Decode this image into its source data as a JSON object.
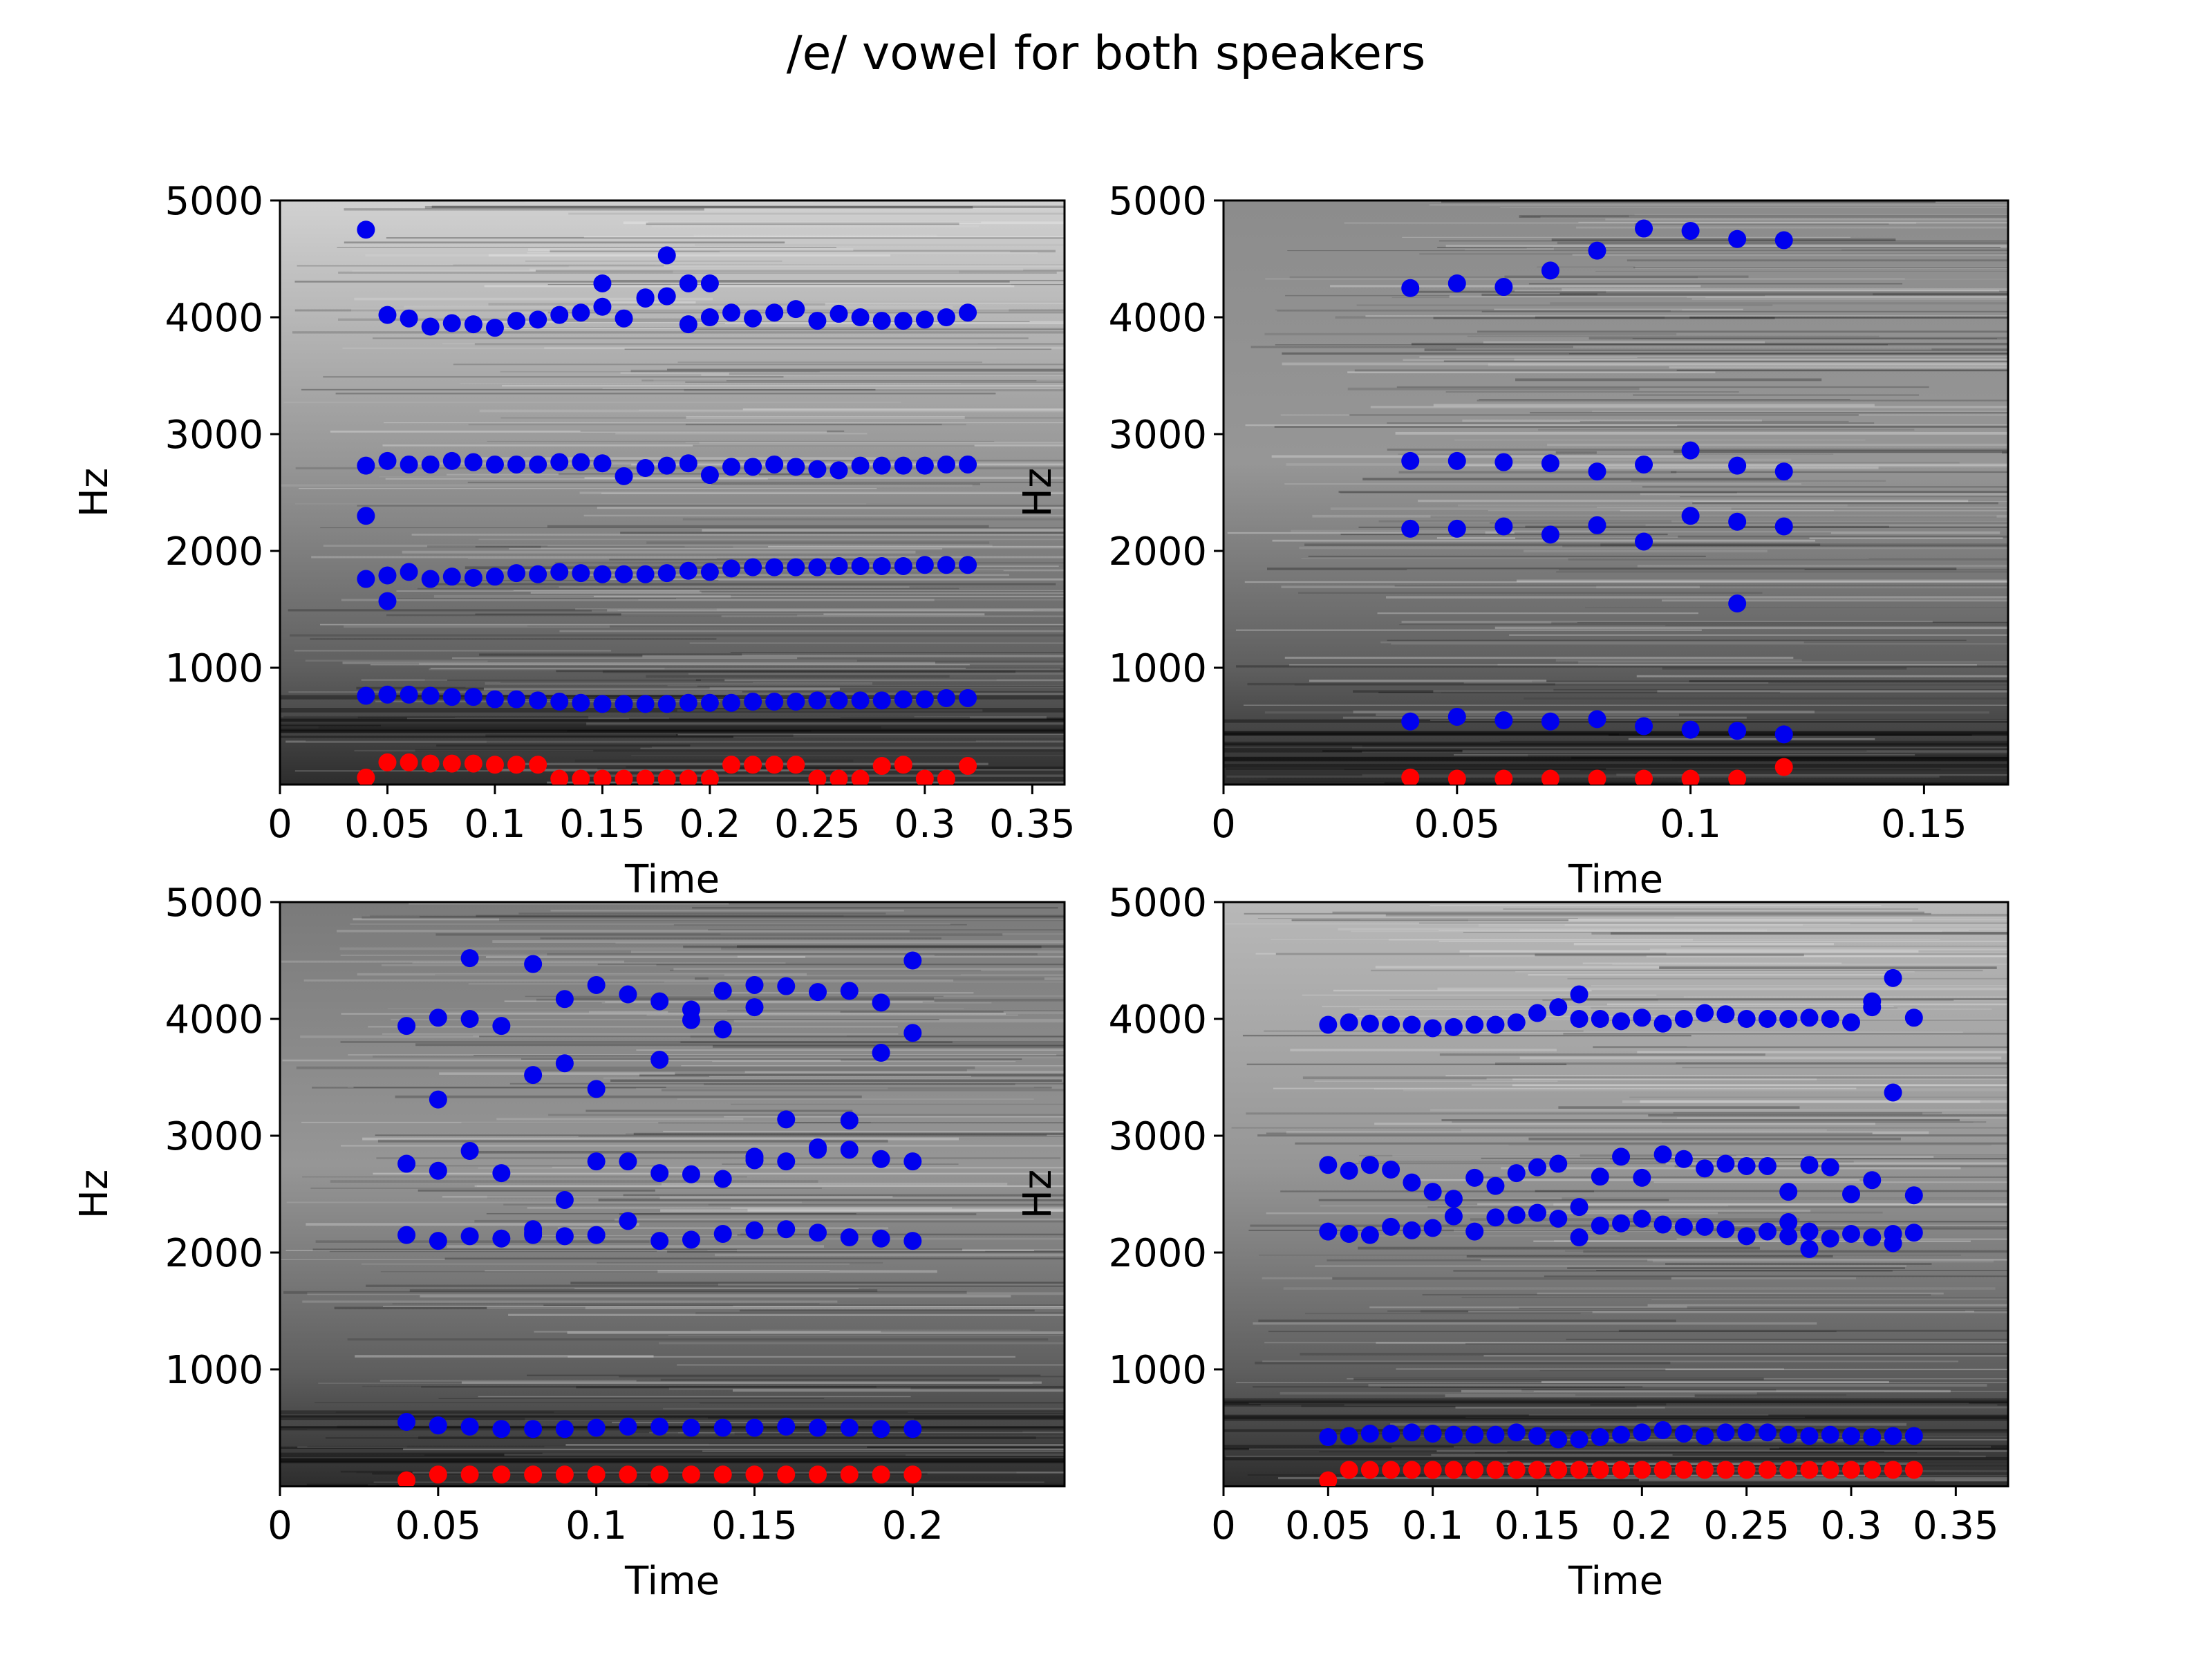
{
  "figure": {
    "title": "/e/ vowel for both speakers"
  },
  "colors": {
    "formant_points": "#0000ee",
    "pitch_points": "#ff0000",
    "axes": "#000000",
    "spectrogram_dark": "#1a1a1a",
    "spectrogram_light": "#f2f2f2"
  },
  "chart_data": [
    {
      "type": "scatter",
      "panel": "top-left",
      "background": "grayscale spectrogram",
      "xlabel": "Time",
      "ylabel": "Hz",
      "xlim": [
        0,
        0.365
      ],
      "ylim": [
        0,
        5000
      ],
      "xticks": [
        "0",
        "0.05",
        "0.1",
        "0.15",
        "0.2",
        "0.25",
        "0.3",
        "0.35"
      ],
      "xtick_values": [
        0,
        0.05,
        0.1,
        0.15,
        0.2,
        0.25,
        0.3,
        0.35
      ],
      "yticks": [
        "1000",
        "2000",
        "3000",
        "4000",
        "5000"
      ],
      "ytick_values": [
        1000,
        2000,
        3000,
        4000,
        5000
      ],
      "x": [
        0.04,
        0.05,
        0.06,
        0.07,
        0.08,
        0.09,
        0.1,
        0.11,
        0.12,
        0.13,
        0.14,
        0.15,
        0.16,
        0.17,
        0.18,
        0.19,
        0.2,
        0.21,
        0.22,
        0.23,
        0.24,
        0.25,
        0.26,
        0.27,
        0.28,
        0.29,
        0.3,
        0.31,
        0.32
      ],
      "series": [
        {
          "color": "blue",
          "y": [
            4750,
            4020,
            3990,
            3920,
            3950,
            3940,
            3910,
            3970,
            3980,
            4020,
            4040,
            4090,
            3990,
            4170,
            4530,
            4290,
            4000,
            4040,
            3990,
            4040,
            4070,
            3970,
            4030,
            4000,
            3970,
            3970,
            3980,
            4000,
            4040
          ]
        },
        {
          "color": "blue",
          "x": [
            0.15,
            0.17,
            0.18,
            0.19,
            0.2
          ],
          "y": [
            4290,
            4160,
            4180,
            3940,
            4290
          ]
        },
        {
          "color": "blue",
          "y": [
            2730,
            2770,
            2740,
            2740,
            2770,
            2760,
            2740,
            2740,
            2740,
            2760,
            2760,
            2750,
            2640,
            2710,
            2730,
            2750,
            2650,
            2720,
            2720,
            2740,
            2720,
            2700,
            2690,
            2730,
            2730,
            2730,
            2730,
            2740,
            2740
          ]
        },
        {
          "color": "blue",
          "y": [
            1760,
            1790,
            1820,
            1760,
            1780,
            1770,
            1780,
            1810,
            1800,
            1820,
            1810,
            1800,
            1800,
            1800,
            1810,
            1830,
            1820,
            1850,
            1860,
            1860,
            1860,
            1860,
            1870,
            1870,
            1870,
            1870,
            1880,
            1880,
            1880
          ]
        },
        {
          "color": "blue",
          "x": [
            0.04,
            0.05
          ],
          "y": [
            2300,
            1570
          ]
        },
        {
          "color": "blue",
          "y": [
            760,
            770,
            770,
            760,
            750,
            750,
            730,
            730,
            720,
            710,
            700,
            690,
            690,
            690,
            690,
            700,
            700,
            700,
            710,
            710,
            710,
            720,
            720,
            720,
            720,
            730,
            730,
            740,
            740
          ]
        },
        {
          "color": "red",
          "y": [
            60,
            190,
            190,
            180,
            180,
            180,
            170,
            170,
            170,
            50,
            50,
            50,
            50,
            50,
            50,
            50,
            50,
            170,
            170,
            170,
            170,
            50,
            50,
            50,
            160,
            170,
            50,
            50,
            160
          ]
        }
      ]
    },
    {
      "type": "scatter",
      "panel": "top-right",
      "background": "grayscale spectrogram",
      "xlabel": "Time",
      "ylabel": "Hz",
      "xlim": [
        0,
        0.168
      ],
      "ylim": [
        0,
        5000
      ],
      "xticks": [
        "0",
        "0.05",
        "0.1",
        "0.15"
      ],
      "xtick_values": [
        0,
        0.05,
        0.1,
        0.15
      ],
      "yticks": [
        "1000",
        "2000",
        "3000",
        "4000",
        "5000"
      ],
      "ytick_values": [
        1000,
        2000,
        3000,
        4000,
        5000
      ],
      "x": [
        0.04,
        0.05,
        0.06,
        0.07,
        0.08,
        0.09,
        0.1,
        0.11,
        0.12
      ],
      "series": [
        {
          "color": "blue",
          "y": [
            4250,
            4290,
            4260,
            4400,
            4570,
            4760,
            4740,
            4670,
            4660
          ]
        },
        {
          "color": "blue",
          "y": [
            2770,
            2770,
            2760,
            2750,
            2680,
            2740,
            2860,
            2730,
            2680
          ]
        },
        {
          "color": "blue",
          "y": [
            2190,
            2190,
            2210,
            2140,
            2220,
            2080,
            2300,
            2250,
            2210
          ]
        },
        {
          "color": "blue",
          "x": [
            0.11
          ],
          "y": [
            1550
          ]
        },
        {
          "color": "blue",
          "y": [
            540,
            580,
            550,
            540,
            560,
            500,
            470,
            460,
            430
          ]
        },
        {
          "color": "red",
          "y": [
            60,
            50,
            50,
            50,
            50,
            50,
            50,
            50,
            150
          ]
        }
      ]
    },
    {
      "type": "scatter",
      "panel": "bottom-left",
      "background": "grayscale spectrogram",
      "xlabel": "Time",
      "ylabel": "Hz",
      "xlim": [
        0,
        0.248
      ],
      "ylim": [
        0,
        5000
      ],
      "xticks": [
        "0",
        "0.05",
        "0.1",
        "0.15",
        "0.2"
      ],
      "xtick_values": [
        0,
        0.05,
        0.1,
        0.15,
        0.2
      ],
      "yticks": [
        "1000",
        "2000",
        "3000",
        "4000",
        "5000"
      ],
      "ytick_values": [
        1000,
        2000,
        3000,
        4000,
        5000
      ],
      "x": [
        0.04,
        0.05,
        0.06,
        0.07,
        0.08,
        0.09,
        0.1,
        0.11,
        0.12,
        0.13,
        0.14,
        0.15,
        0.16,
        0.17,
        0.18,
        0.19,
        0.2
      ],
      "series": [
        {
          "color": "blue",
          "y": [
            3940,
            4010,
            4520,
            3940,
            4470,
            4170,
            4290,
            4210,
            4150,
            4080,
            4240,
            4290,
            4280,
            4230,
            4240,
            4140,
            4500
          ]
        },
        {
          "color": "blue",
          "x": [
            0.05,
            0.06,
            0.08,
            0.09,
            0.1,
            0.12,
            0.13,
            0.14,
            0.15,
            0.19,
            0.2
          ],
          "y": [
            3310,
            4000,
            3520,
            3620,
            3400,
            3650,
            3990,
            3910,
            4100,
            3710,
            3880
          ]
        },
        {
          "color": "blue",
          "y": [
            2760,
            2700,
            2870,
            2680,
            2200,
            2450,
            2780,
            2780,
            2680,
            2670,
            2630,
            2820,
            3140,
            2880,
            3130,
            2800,
            2780
          ]
        },
        {
          "color": "blue",
          "x": [
            0.08,
            0.15,
            0.16,
            0.17,
            0.18
          ],
          "y": [
            2170,
            2790,
            2780,
            2900,
            2880
          ]
        },
        {
          "color": "blue",
          "y": [
            2150,
            2100,
            2140,
            2120,
            2150,
            2140,
            2150,
            2270,
            2100,
            2110,
            2160,
            2190,
            2200,
            2170,
            2130,
            2120,
            2100
          ]
        },
        {
          "color": "blue",
          "y": [
            550,
            520,
            510,
            490,
            490,
            490,
            500,
            510,
            510,
            500,
            500,
            500,
            510,
            500,
            500,
            490,
            490
          ]
        },
        {
          "color": "red",
          "y": [
            50,
            100,
            100,
            100,
            100,
            100,
            100,
            100,
            100,
            100,
            100,
            100,
            100,
            100,
            100,
            100,
            100
          ]
        }
      ]
    },
    {
      "type": "scatter",
      "panel": "bottom-right",
      "background": "grayscale spectrogram",
      "xlabel": "Time",
      "ylabel": "Hz",
      "xlim": [
        0,
        0.375
      ],
      "ylim": [
        0,
        5000
      ],
      "xticks": [
        "0",
        "0.05",
        "0.1",
        "0.15",
        "0.2",
        "0.25",
        "0.3",
        "0.35"
      ],
      "xtick_values": [
        0,
        0.05,
        0.1,
        0.15,
        0.2,
        0.25,
        0.3,
        0.35
      ],
      "yticks": [
        "1000",
        "2000",
        "3000",
        "4000",
        "5000"
      ],
      "ytick_values": [
        1000,
        2000,
        3000,
        4000,
        5000
      ],
      "x": [
        0.05,
        0.06,
        0.07,
        0.08,
        0.09,
        0.1,
        0.11,
        0.12,
        0.13,
        0.14,
        0.15,
        0.16,
        0.17,
        0.18,
        0.19,
        0.2,
        0.21,
        0.22,
        0.23,
        0.24,
        0.25,
        0.26,
        0.27,
        0.28,
        0.29,
        0.3,
        0.31,
        0.32,
        0.33
      ],
      "series": [
        {
          "color": "blue",
          "y": [
            3950,
            3970,
            3960,
            3950,
            3950,
            3920,
            3930,
            3950,
            3950,
            3970,
            4050,
            4100,
            4210,
            4000,
            3980,
            4010,
            3960,
            4000,
            4050,
            4040,
            4000,
            4000,
            4000,
            4010,
            4000,
            3970,
            4150,
            4350,
            4010
          ]
        },
        {
          "color": "blue",
          "x": [
            0.17,
            0.31,
            0.32
          ],
          "y": [
            4000,
            4100,
            3370
          ]
        },
        {
          "color": "blue",
          "y": [
            2750,
            2700,
            2750,
            2710,
            2600,
            2520,
            2460,
            2640,
            2570,
            2680,
            2730,
            2760,
            2390,
            2650,
            2820,
            2640,
            2840,
            2800,
            2720,
            2760,
            2740,
            2740,
            2520,
            2750,
            2730,
            2500,
            2620,
            2080,
            2490
          ]
        },
        {
          "color": "blue",
          "y": [
            2180,
            2160,
            2150,
            2220,
            2190,
            2210,
            2310,
            2180,
            2300,
            2320,
            2340,
            2290,
            2130,
            2230,
            2250,
            2290,
            2240,
            2220,
            2220,
            2200,
            2140,
            2180,
            2260,
            2030,
            2120,
            2160,
            2130,
            2160,
            2170
          ]
        },
        {
          "color": "blue",
          "x": [
            0.27,
            0.28
          ],
          "y": [
            2140,
            2180
          ]
        },
        {
          "color": "blue",
          "y": [
            420,
            430,
            450,
            450,
            460,
            450,
            440,
            440,
            440,
            460,
            430,
            400,
            400,
            420,
            440,
            460,
            480,
            450,
            430,
            460,
            460,
            460,
            440,
            430,
            440,
            430,
            420,
            430,
            430
          ]
        },
        {
          "color": "red",
          "y": [
            50,
            140,
            140,
            140,
            140,
            140,
            140,
            140,
            140,
            140,
            140,
            140,
            140,
            140,
            140,
            140,
            140,
            140,
            140,
            140,
            140,
            140,
            140,
            140,
            140,
            140,
            140,
            140,
            140
          ]
        }
      ]
    }
  ]
}
